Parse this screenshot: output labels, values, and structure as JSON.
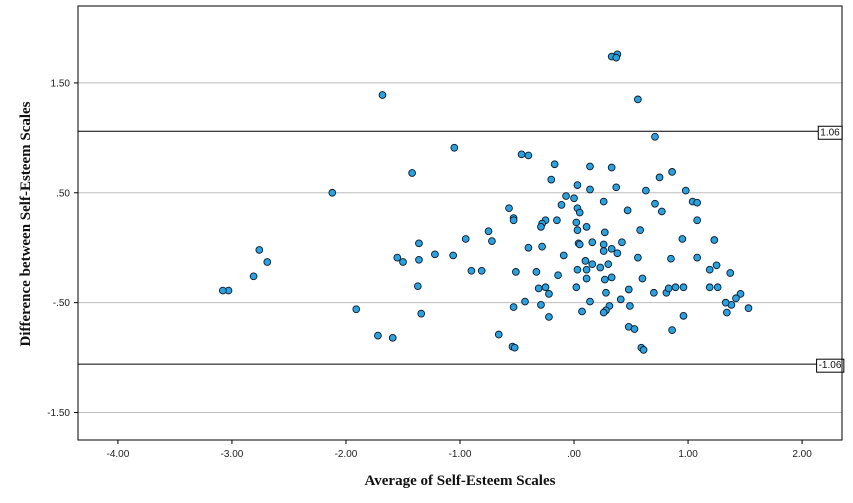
{
  "chart_data": {
    "type": "scatter",
    "xlabel": "Average of Self-Esteem Scales",
    "ylabel": "Difference between Self-Esteem Scales",
    "xlim": [
      -4.35,
      2.35
    ],
    "ylim": [
      -1.75,
      2.2
    ],
    "x_ticks": [
      {
        "value": -4,
        "label": "-4.00"
      },
      {
        "value": -3,
        "label": "-3.00"
      },
      {
        "value": -2,
        "label": "-2.00"
      },
      {
        "value": -1,
        "label": "-1.00"
      },
      {
        "value": 0,
        "label": ".00"
      },
      {
        "value": 1,
        "label": "1.00"
      },
      {
        "value": 2,
        "label": "2.00"
      }
    ],
    "y_ticks": [
      {
        "value": -1.5,
        "label": "-1.50"
      },
      {
        "value": -0.5,
        "label": "-.50"
      },
      {
        "value": 0.5,
        "label": ".50"
      },
      {
        "value": 1.5,
        "label": "1.50"
      }
    ],
    "reference_lines": [
      {
        "value": 1.06,
        "label": "1.06"
      },
      {
        "value": -1.06,
        "label": "-1.06"
      }
    ],
    "gridlines": "horizontal",
    "marker_color": "#2aa2e0",
    "marker_edge_color": "#0d1b2a",
    "points": [
      [
        0.33,
        1.74
      ],
      [
        0.38,
        1.76
      ],
      [
        0.37,
        1.73
      ],
      [
        -1.68,
        1.39
      ],
      [
        0.56,
        1.35
      ],
      [
        0.71,
        1.01
      ],
      [
        -1.05,
        0.91
      ],
      [
        -0.46,
        0.85
      ],
      [
        -0.4,
        0.84
      ],
      [
        -0.17,
        0.76
      ],
      [
        0.14,
        0.74
      ],
      [
        0.33,
        0.73
      ],
      [
        0.86,
        0.69
      ],
      [
        -1.42,
        0.68
      ],
      [
        0.75,
        0.64
      ],
      [
        -0.2,
        0.62
      ],
      [
        0.03,
        0.57
      ],
      [
        0.37,
        0.55
      ],
      [
        0.63,
        0.52
      ],
      [
        0.98,
        0.52
      ],
      [
        -2.12,
        0.5
      ],
      [
        -0.07,
        0.47
      ],
      [
        0.0,
        0.45
      ],
      [
        0.14,
        0.53
      ],
      [
        0.26,
        0.42
      ],
      [
        1.04,
        0.42
      ],
      [
        1.08,
        0.41
      ],
      [
        0.71,
        0.4
      ],
      [
        -0.11,
        0.39
      ],
      [
        -0.57,
        0.36
      ],
      [
        0.03,
        0.36
      ],
      [
        0.05,
        0.32
      ],
      [
        0.47,
        0.34
      ],
      [
        0.77,
        0.33
      ],
      [
        -0.53,
        0.27
      ],
      [
        -0.53,
        0.25
      ],
      [
        -0.25,
        0.25
      ],
      [
        -0.15,
        0.25
      ],
      [
        -0.28,
        0.22
      ],
      [
        0.02,
        0.23
      ],
      [
        -0.29,
        0.19
      ],
      [
        0.11,
        0.19
      ],
      [
        0.03,
        0.16
      ],
      [
        0.27,
        0.14
      ],
      [
        0.58,
        0.16
      ],
      [
        1.08,
        0.25
      ],
      [
        -0.75,
        0.15
      ],
      [
        -0.95,
        0.08
      ],
      [
        -0.72,
        0.06
      ],
      [
        0.42,
        0.05
      ],
      [
        0.95,
        0.08
      ],
      [
        1.23,
        0.07
      ],
      [
        -1.36,
        0.04
      ],
      [
        -2.76,
        -0.02
      ],
      [
        -0.4,
        0.0
      ],
      [
        -0.28,
        0.01
      ],
      [
        0.04,
        0.04
      ],
      [
        0.05,
        0.03
      ],
      [
        0.16,
        0.05
      ],
      [
        0.26,
        0.03
      ],
      [
        0.33,
        -0.01
      ],
      [
        -1.22,
        -0.06
      ],
      [
        -1.06,
        -0.07
      ],
      [
        -1.55,
        -0.09
      ],
      [
        -1.5,
        -0.13
      ],
      [
        -1.36,
        -0.11
      ],
      [
        0.1,
        -0.12
      ],
      [
        0.26,
        -0.03
      ],
      [
        0.38,
        -0.05
      ],
      [
        -0.09,
        -0.07
      ],
      [
        0.56,
        -0.09
      ],
      [
        0.85,
        -0.1
      ],
      [
        1.08,
        -0.09
      ],
      [
        -2.69,
        -0.13
      ],
      [
        -0.9,
        -0.21
      ],
      [
        -0.81,
        -0.21
      ],
      [
        -0.51,
        -0.22
      ],
      [
        -0.33,
        -0.22
      ],
      [
        0.03,
        -0.2
      ],
      [
        0.11,
        -0.2
      ],
      [
        0.16,
        -0.15
      ],
      [
        0.23,
        -0.18
      ],
      [
        0.3,
        -0.15
      ],
      [
        1.19,
        -0.2
      ],
      [
        1.25,
        -0.16
      ],
      [
        1.37,
        -0.23
      ],
      [
        -2.81,
        -0.26
      ],
      [
        -0.14,
        -0.25
      ],
      [
        0.11,
        -0.28
      ],
      [
        0.27,
        -0.29
      ],
      [
        0.33,
        -0.27
      ],
      [
        0.6,
        -0.28
      ],
      [
        -0.31,
        -0.37
      ],
      [
        -0.25,
        -0.36
      ],
      [
        0.48,
        -0.38
      ],
      [
        -1.37,
        -0.35
      ],
      [
        0.02,
        -0.36
      ],
      [
        0.81,
        -0.41
      ],
      [
        0.83,
        -0.37
      ],
      [
        0.89,
        -0.36
      ],
      [
        0.96,
        -0.36
      ],
      [
        1.19,
        -0.36
      ],
      [
        1.26,
        -0.36
      ],
      [
        0.7,
        -0.41
      ],
      [
        -0.22,
        -0.42
      ],
      [
        0.28,
        -0.41
      ],
      [
        1.46,
        -0.42
      ],
      [
        -3.03,
        -0.39
      ],
      [
        -3.08,
        -0.39
      ],
      [
        1.42,
        -0.46
      ],
      [
        -0.43,
        -0.49
      ],
      [
        0.14,
        -0.49
      ],
      [
        0.41,
        -0.47
      ],
      [
        0.49,
        -0.53
      ],
      [
        1.38,
        -0.52
      ],
      [
        1.33,
        -0.5
      ],
      [
        -0.53,
        -0.54
      ],
      [
        -0.29,
        -0.52
      ],
      [
        0.31,
        -0.53
      ],
      [
        1.53,
        -0.55
      ],
      [
        -1.91,
        -0.56
      ],
      [
        0.28,
        -0.57
      ],
      [
        0.26,
        -0.59
      ],
      [
        0.07,
        -0.58
      ],
      [
        1.34,
        -0.59
      ],
      [
        -1.34,
        -0.6
      ],
      [
        -0.22,
        -0.63
      ],
      [
        0.96,
        -0.62
      ],
      [
        0.48,
        -0.72
      ],
      [
        0.53,
        -0.74
      ],
      [
        0.86,
        -0.75
      ],
      [
        -0.66,
        -0.79
      ],
      [
        -1.72,
        -0.8
      ],
      [
        -1.59,
        -0.82
      ],
      [
        -0.54,
        -0.9
      ],
      [
        -0.52,
        -0.91
      ],
      [
        0.59,
        -0.91
      ],
      [
        0.61,
        -0.93
      ]
    ]
  }
}
